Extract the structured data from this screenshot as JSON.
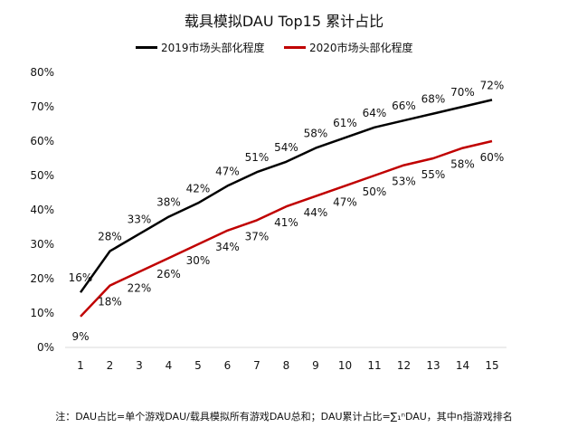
{
  "chart_data": {
    "type": "line",
    "title": "载具模拟DAU Top15 累计占比",
    "categories": [
      "1",
      "2",
      "3",
      "4",
      "5",
      "6",
      "7",
      "8",
      "9",
      "10",
      "11",
      "12",
      "13",
      "14",
      "15"
    ],
    "series": [
      {
        "name": "2019市场头部化程度",
        "color": "#000000",
        "values": [
          16,
          28,
          33,
          38,
          42,
          47,
          51,
          54,
          58,
          61,
          64,
          66,
          68,
          70,
          72
        ]
      },
      {
        "name": "2020市场头部化程度",
        "color": "#c00000",
        "values": [
          9,
          18,
          22,
          26,
          30,
          34,
          37,
          41,
          44,
          47,
          50,
          53,
          55,
          58,
          60
        ]
      }
    ],
    "ylim": [
      0,
      80
    ],
    "yticks": [
      "0%",
      "10%",
      "20%",
      "30%",
      "40%",
      "50%",
      "60%",
      "70%",
      "80%"
    ],
    "legend": "top",
    "grid": false
  },
  "note": "注：DAU占比=单个游戏DAU/载具模拟所有游戏DAU总和；DAU累计占比=∑₁ⁿDAU，其中n指游戏排名"
}
